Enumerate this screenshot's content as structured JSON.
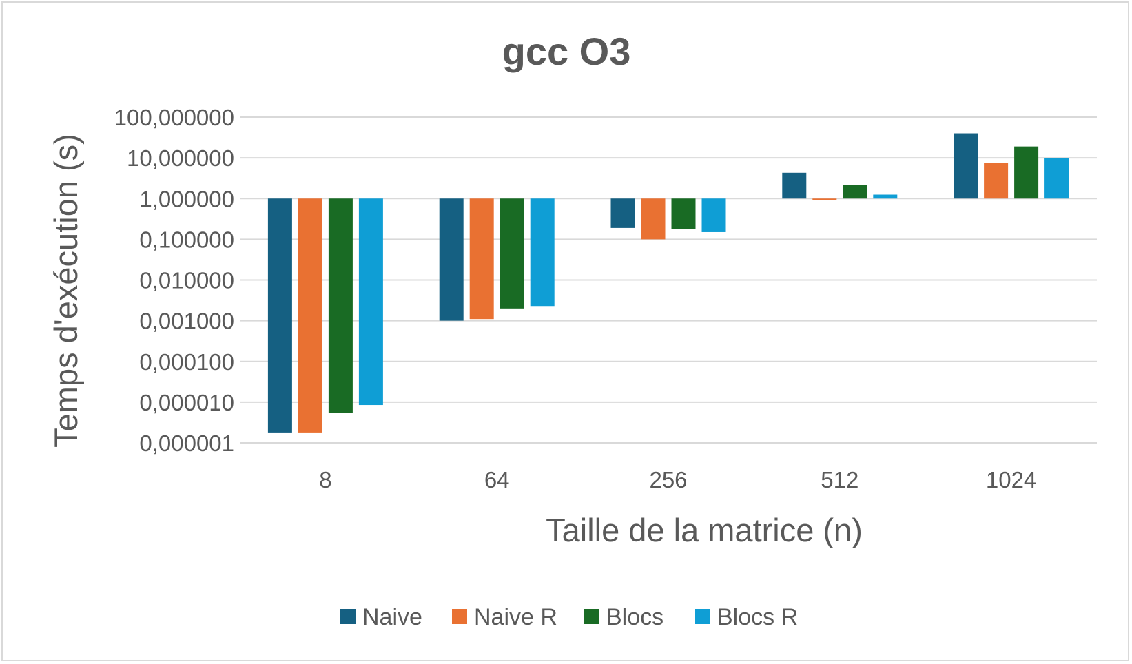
{
  "chart_data": {
    "type": "bar",
    "title": "gcc O3",
    "xlabel": "Taille de la matrice (n)",
    "ylabel": "Temps d'exécution (s)",
    "y_scale": "log",
    "ylim": [
      1e-06,
      100
    ],
    "y_ticks": [
      100,
      10,
      1,
      0.1,
      0.01,
      0.001,
      0.0001,
      1e-05,
      1e-06
    ],
    "y_tick_labels": [
      "100,000000",
      "10,000000",
      "1,000000",
      "0,100000",
      "0,010000",
      "0,001000",
      "0,000100",
      "0,000010",
      "0,000001"
    ],
    "bar_base": 1,
    "categories": [
      "8",
      "64",
      "256",
      "512",
      "1024"
    ],
    "series": [
      {
        "name": "Naive",
        "color": "#156082",
        "values": [
          1.8e-06,
          0.001,
          0.19,
          4.3,
          40
        ]
      },
      {
        "name": "Naive R",
        "color": "#e97132",
        "values": [
          1.8e-06,
          0.0011,
          0.1,
          0.9,
          7.5
        ]
      },
      {
        "name": "Blocs",
        "color": "#196b24",
        "values": [
          5.5e-06,
          0.002,
          0.18,
          2.2,
          19
        ]
      },
      {
        "name": "Blocs R",
        "color": "#0f9ed5",
        "values": [
          8.5e-06,
          0.0023,
          0.15,
          1.25,
          10
        ]
      }
    ],
    "grid": true,
    "legend_position": "bottom"
  }
}
